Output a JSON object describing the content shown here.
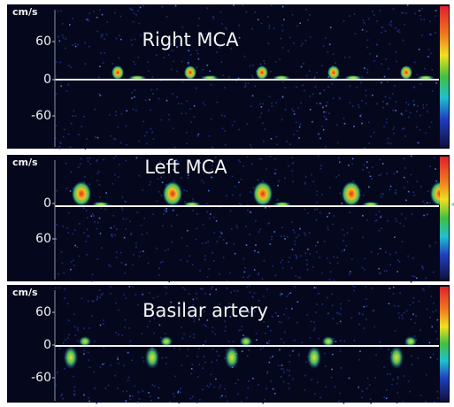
{
  "panels": [
    {
      "title": "Right MCA",
      "unit": "cm/s",
      "ticks": [
        60,
        0,
        -60
      ]
    },
    {
      "title": "Left MCA",
      "unit": "cm/s",
      "ticks": [
        0,
        60
      ]
    },
    {
      "title": "Basilar artery",
      "unit": "cm/s",
      "ticks": [
        60,
        0,
        -60
      ]
    }
  ]
}
